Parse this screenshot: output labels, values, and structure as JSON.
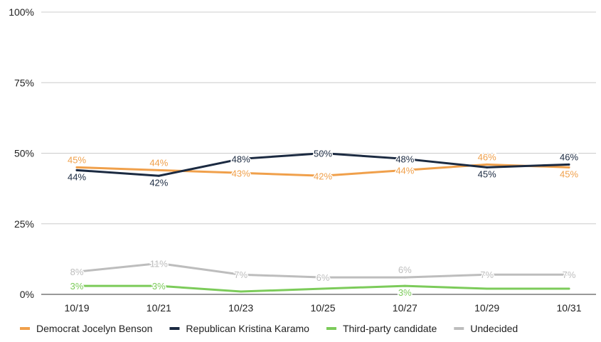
{
  "chart_data": {
    "type": "line",
    "categories": [
      "10/19",
      "10/21",
      "10/23",
      "10/25",
      "10/27",
      "10/29",
      "10/31"
    ],
    "ylim": [
      0,
      100
    ],
    "y_ticks": [
      0,
      25,
      50,
      75,
      100
    ],
    "y_tick_labels": [
      "0%",
      "25%",
      "50%",
      "75%",
      "100%"
    ],
    "grid": "horizontal",
    "legend_position": "bottom",
    "series": [
      {
        "name": "Democrat Jocelyn Benson",
        "color": "#f0a04b",
        "values": [
          45,
          44,
          43,
          42,
          44,
          46,
          45
        ],
        "labels": [
          "45%",
          "44%",
          "43%",
          "42%",
          "44%",
          "46%",
          "45%"
        ]
      },
      {
        "name": "Republican Kristina Karamo",
        "color": "#1b2a41",
        "values": [
          44,
          42,
          48,
          50,
          48,
          45,
          46
        ],
        "labels": [
          "44%",
          "42%",
          "48%",
          "50%",
          "48%",
          "45%",
          "46%"
        ]
      },
      {
        "name": "Third-party candidate",
        "color": "#7ccb5a",
        "values": [
          3,
          3,
          1,
          2,
          3,
          2,
          2
        ],
        "labels": [
          "3%",
          "3%",
          "",
          "",
          "3%",
          "",
          ""
        ]
      },
      {
        "name": "Undecided",
        "color": "#bdbdbd",
        "values": [
          8,
          11,
          7,
          6,
          6,
          7,
          7
        ],
        "labels": [
          "8%",
          "11%",
          "7%",
          "6%",
          "6%",
          "7%",
          "7%"
        ]
      }
    ]
  }
}
